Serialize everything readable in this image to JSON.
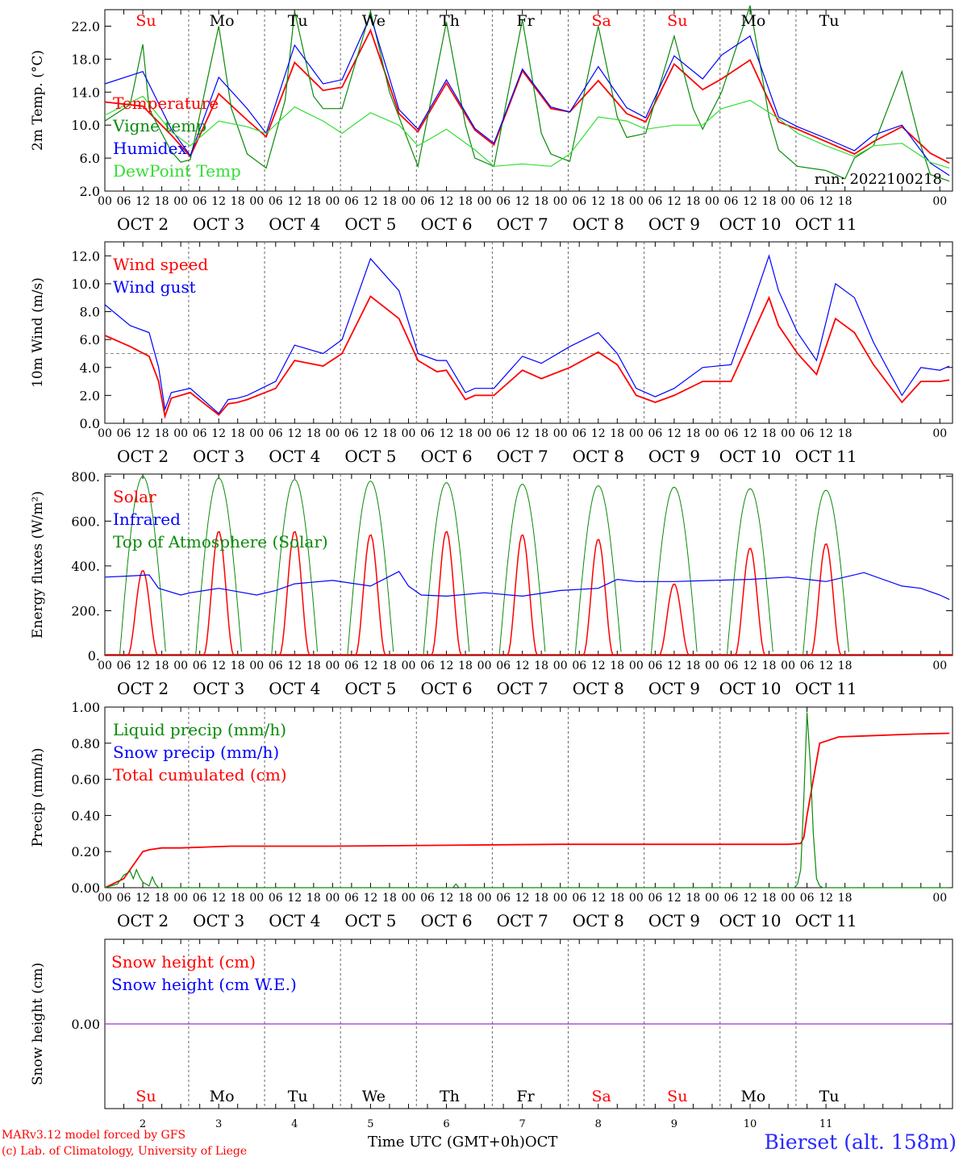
{
  "colors": {
    "red": "#ff0000",
    "green": "#0a8a0a",
    "blue": "#0000ff",
    "lightgreen": "#33dd33",
    "purple": "#9933cc",
    "grid": "#666666"
  },
  "run_label": "run: 2022100218",
  "days": {
    "weekday_labels": [
      "Su",
      "Mo",
      "Tu",
      "We",
      "Th",
      "Fr",
      "Sa",
      "Su",
      "Mo",
      "Tu"
    ],
    "weekend_flags": [
      true,
      false,
      false,
      false,
      false,
      false,
      true,
      true,
      false,
      false
    ],
    "date_labels": [
      "OCT  2",
      "OCT  3",
      "OCT  4",
      "OCT  5",
      "OCT  6",
      "OCT  7",
      "OCT  8",
      "OCT  9",
      "OCT 10",
      "OCT 11"
    ],
    "day_numbers": [
      "2",
      "3",
      "4",
      "5",
      "6",
      "7",
      "8",
      "9",
      "10",
      "11"
    ],
    "hour_ticks": [
      "00",
      "06",
      "12",
      "18"
    ],
    "final_tick": "00"
  },
  "footer": {
    "credit1": "MARv3.12 model forced by GFS",
    "credit2": "(c) Lab. of Climatology, University of Liege",
    "xtitle": "Time UTC (GMT+0h)",
    "month": "OCT",
    "station": "Bierset (alt. 158m)"
  },
  "chart_data": [
    {
      "type": "line",
      "ylabel": "2m Temp. (°C)",
      "ylim": [
        2,
        24
      ],
      "yticks": [
        "2.0",
        "6.0",
        "10.0",
        "14.0",
        "18.0",
        "22.0"
      ],
      "ytick_values": [
        2,
        6,
        10,
        14,
        18,
        22
      ],
      "x_unit": "hours since OCT 2 00 UTC",
      "legend": [
        {
          "name": "Temperature",
          "color": "#ff0000"
        },
        {
          "name": "Vigne temp",
          "color": "#0a8a0a"
        },
        {
          "name": "Humidex",
          "color": "#0000ff"
        },
        {
          "name": "DewPoint Temp",
          "color": "#33dd33"
        }
      ],
      "series": [
        {
          "name": "Temperature",
          "color": "#ff0000",
          "x": [
            0,
            12,
            21,
            27,
            36,
            45,
            51,
            60,
            69,
            75,
            84,
            93,
            99,
            108,
            117,
            123,
            132,
            141,
            147,
            156,
            165,
            171,
            180,
            189,
            195,
            204,
            213,
            219,
            228,
            237,
            243,
            252,
            261,
            267,
            276,
            285,
            291,
            300,
            309,
            315,
            327,
            333,
            339,
            345,
            348,
            360
          ],
          "y": [
            12.8,
            12.3,
            8.8,
            6.2,
            13.8,
            10.6,
            8.6,
            17.6,
            14.2,
            14.6,
            21.5,
            11.4,
            9.2,
            15.1,
            9.4,
            7.6,
            16.6,
            12.0,
            11.6,
            15.4,
            11.4,
            10.4,
            17.4,
            14.3,
            15.6,
            17.9,
            10.4,
            9.5,
            8.0,
            6.5,
            8.0,
            9.8,
            6.6,
            5.4,
            null,
            null,
            null,
            null,
            null,
            null,
            null,
            null,
            null,
            null,
            null,
            null
          ]
        },
        {
          "name": "Vigne temp",
          "color": "#0a8a0a",
          "x": [
            0,
            8,
            12,
            14,
            18,
            21,
            24,
            27,
            36,
            40,
            45,
            51,
            57,
            60,
            66,
            69,
            75,
            84,
            90,
            93,
            99,
            108,
            114,
            117,
            123,
            132,
            138,
            141,
            147,
            156,
            162,
            165,
            171,
            180,
            186,
            189,
            195,
            204,
            210,
            213,
            219,
            228,
            234,
            237,
            243,
            252,
            258,
            261,
            267
          ],
          "y": [
            10.5,
            12.5,
            19.8,
            12.0,
            9.0,
            6.8,
            5.5,
            5.8,
            22.0,
            12.0,
            6.5,
            4.8,
            13.0,
            23.8,
            13.5,
            12.0,
            12.0,
            23.8,
            14.0,
            11.0,
            5.0,
            22.5,
            10.0,
            6.0,
            5.0,
            22.8,
            9.0,
            6.5,
            5.6,
            22.0,
            11.0,
            8.5,
            9.0,
            20.8,
            12.0,
            9.5,
            14.0,
            24.5,
            11.0,
            7.0,
            5.0,
            4.5,
            3.5,
            6.0,
            7.5,
            16.5,
            7.5,
            4.0,
            3.2
          ]
        },
        {
          "name": "Humidex",
          "color": "#0000ff",
          "x": [
            0,
            12,
            21,
            27,
            36,
            45,
            51,
            60,
            69,
            75,
            84,
            93,
            99,
            108,
            117,
            123,
            132,
            141,
            147,
            156,
            165,
            171,
            180,
            189,
            195,
            204,
            213,
            219,
            228,
            237,
            243,
            252,
            261,
            267
          ],
          "y": [
            15.0,
            16.5,
            9.5,
            6.3,
            15.8,
            12.0,
            9.0,
            19.7,
            15.0,
            15.5,
            23.3,
            11.9,
            9.5,
            15.5,
            9.6,
            7.8,
            16.8,
            12.2,
            11.6,
            17.1,
            12.1,
            10.9,
            18.4,
            15.6,
            18.5,
            20.8,
            11.0,
            9.8,
            8.4,
            6.9,
            8.8,
            10.0,
            5.4,
            3.9
          ]
        },
        {
          "name": "DewPoint Temp",
          "color": "#33dd33",
          "x": [
            0,
            12,
            21,
            27,
            36,
            45,
            51,
            60,
            69,
            75,
            84,
            93,
            99,
            108,
            117,
            123,
            132,
            141,
            147,
            156,
            165,
            171,
            180,
            189,
            195,
            204,
            213,
            219,
            228,
            237,
            243,
            252,
            261,
            267
          ],
          "y": [
            11.2,
            13.5,
            9.2,
            7.5,
            10.5,
            9.8,
            9.0,
            12.2,
            10.5,
            9.0,
            11.5,
            10.0,
            7.5,
            9.5,
            7.0,
            5.0,
            5.3,
            5.0,
            6.5,
            11.0,
            10.5,
            9.5,
            10.0,
            10.0,
            12.0,
            13.0,
            10.8,
            9.0,
            7.5,
            6.2,
            7.5,
            7.8,
            5.5,
            4.8
          ]
        }
      ]
    },
    {
      "type": "line",
      "ylabel": "10m Wind (m/s)",
      "ylim": [
        0,
        13
      ],
      "yticks": [
        "0.0",
        "2.0",
        "4.0",
        "6.0",
        "8.0",
        "10.0",
        "12.0"
      ],
      "ytick_values": [
        0,
        2,
        4,
        6,
        8,
        10,
        12
      ],
      "reference_line": 5,
      "legend": [
        {
          "name": "Wind speed",
          "color": "#ff0000"
        },
        {
          "name": "Wind gust",
          "color": "#0000ff"
        }
      ],
      "series": [
        {
          "name": "Wind speed",
          "color": "#ff0000",
          "x": [
            0,
            8,
            14,
            17,
            19,
            21,
            27,
            36,
            39,
            42,
            45,
            54,
            60,
            69,
            75,
            84,
            93,
            99,
            105,
            108,
            114,
            117,
            123,
            132,
            138,
            147,
            156,
            162,
            168,
            174,
            180,
            189,
            198,
            204,
            210,
            213,
            219,
            225,
            231,
            237,
            243,
            252,
            258,
            264,
            267
          ],
          "y": [
            6.3,
            5.5,
            4.8,
            3.0,
            0.5,
            1.8,
            2.2,
            0.6,
            1.4,
            1.5,
            1.7,
            2.5,
            4.5,
            4.1,
            5.0,
            9.1,
            7.5,
            4.5,
            3.7,
            3.8,
            1.7,
            2.0,
            2.0,
            3.8,
            3.2,
            4.0,
            5.1,
            4.2,
            2.0,
            1.5,
            2.0,
            3.0,
            3.0,
            6.0,
            9.0,
            7.0,
            5.0,
            3.5,
            7.5,
            6.5,
            4.2,
            1.5,
            3.0,
            3.0,
            3.1
          ]
        },
        {
          "name": "Wind gust",
          "color": "#0000ff",
          "x": [
            0,
            8,
            14,
            17,
            19,
            21,
            27,
            36,
            39,
            42,
            45,
            54,
            60,
            69,
            75,
            84,
            93,
            99,
            105,
            108,
            114,
            117,
            123,
            132,
            138,
            147,
            156,
            162,
            168,
            174,
            180,
            189,
            198,
            204,
            210,
            213,
            219,
            225,
            231,
            237,
            243,
            252,
            258,
            264,
            267
          ],
          "y": [
            8.5,
            7.0,
            6.5,
            4.0,
            1.0,
            2.2,
            2.5,
            0.7,
            1.7,
            1.8,
            2.0,
            3.0,
            5.6,
            5.0,
            6.0,
            11.8,
            9.5,
            5.0,
            4.5,
            4.5,
            2.2,
            2.5,
            2.5,
            4.8,
            4.3,
            5.5,
            6.5,
            5.0,
            2.5,
            1.9,
            2.5,
            4.0,
            4.2,
            8.0,
            12.0,
            9.5,
            6.5,
            4.5,
            10.0,
            9.0,
            5.8,
            2.0,
            4.0,
            3.8,
            4.1
          ]
        }
      ]
    },
    {
      "type": "line",
      "ylabel": "Energy fluxes (W/m²)",
      "ylim": [
        0,
        810
      ],
      "yticks": [
        "0.",
        "200.",
        "400.",
        "600.",
        "800."
      ],
      "ytick_values": [
        0,
        200,
        400,
        600,
        800
      ],
      "legend": [
        {
          "name": "Solar",
          "color": "#ff0000"
        },
        {
          "name": "Infrared",
          "color": "#0000ff"
        },
        {
          "name": "Top of Atmosphere (Solar)",
          "color": "#0a8a0a"
        }
      ],
      "toa_peaks": [
        800,
        793,
        786,
        779,
        772,
        765,
        758,
        752,
        745,
        738
      ],
      "solar_peaks": [
        380,
        555,
        555,
        540,
        555,
        540,
        520,
        320,
        480,
        500
      ],
      "series": [
        {
          "name": "Infrared",
          "color": "#0000ff",
          "x": [
            0,
            8,
            14,
            17,
            24,
            27,
            36,
            42,
            48,
            54,
            60,
            72,
            84,
            93,
            96,
            100,
            108,
            120,
            132,
            144,
            156,
            162,
            168,
            180,
            192,
            204,
            216,
            228,
            240,
            252,
            258,
            264,
            267
          ],
          "y": [
            350,
            355,
            360,
            300,
            270,
            280,
            300,
            285,
            270,
            290,
            320,
            335,
            310,
            375,
            310,
            270,
            265,
            280,
            265,
            290,
            300,
            340,
            330,
            330,
            335,
            340,
            350,
            330,
            370,
            310,
            300,
            270,
            250
          ]
        }
      ]
    },
    {
      "type": "line",
      "ylabel": "Precip (mm/h)",
      "ylim": [
        0,
        1
      ],
      "yticks": [
        "0.00",
        "0.20",
        "0.40",
        "0.60",
        "0.80",
        "1.00"
      ],
      "ytick_values": [
        0,
        0.2,
        0.4,
        0.6,
        0.8,
        1.0
      ],
      "legend": [
        {
          "name": "Liquid precip (mm/h)",
          "color": "#0a8a0a"
        },
        {
          "name": "Snow precip (mm/h)",
          "color": "#0000ff"
        },
        {
          "name": "Total cumulated (cm)",
          "color": "#ff0000"
        }
      ],
      "series": [
        {
          "name": "Total cumulated (cm)",
          "color": "#ff0000",
          "x": [
            0,
            6,
            10,
            12,
            14,
            18,
            24,
            40,
            72,
            108,
            144,
            180,
            216,
            220,
            221,
            222,
            226,
            232,
            240,
            255,
            267
          ],
          "y": [
            0,
            0.05,
            0.15,
            0.2,
            0.21,
            0.22,
            0.22,
            0.23,
            0.23,
            0.235,
            0.24,
            0.24,
            0.24,
            0.245,
            0.28,
            0.4,
            0.8,
            0.835,
            0.84,
            0.85,
            0.855
          ]
        },
        {
          "name": "Liquid precip (mm/h)",
          "color": "#0a8a0a",
          "x": [
            0,
            4,
            6,
            8,
            9,
            10,
            11,
            12,
            14,
            15,
            16,
            17,
            20,
            110,
            111,
            112,
            218,
            219,
            220,
            221,
            222,
            223,
            224,
            225,
            226,
            227,
            267
          ],
          "y": [
            0,
            0.02,
            0.07,
            0.09,
            0.05,
            0.1,
            0.06,
            0.03,
            0.01,
            0.06,
            0.02,
            0,
            0,
            0,
            0.02,
            0,
            0,
            0.02,
            0.1,
            0.5,
            0.97,
            0.7,
            0.3,
            0.05,
            0.01,
            0,
            0
          ]
        }
      ]
    },
    {
      "type": "line",
      "ylabel": "Snow height (cm)",
      "ylim": [
        -1,
        1
      ],
      "yticks": [
        "0.00"
      ],
      "ytick_values": [
        0
      ],
      "legend": [
        {
          "name": "Snow height (cm)",
          "color": "#ff0000"
        },
        {
          "name": "Snow height (cm W.E.)",
          "color": "#0000ff"
        }
      ],
      "series": [
        {
          "name": "Snow height",
          "color": "#9933cc",
          "x": [
            0,
            267
          ],
          "y": [
            0,
            0
          ]
        }
      ]
    }
  ]
}
